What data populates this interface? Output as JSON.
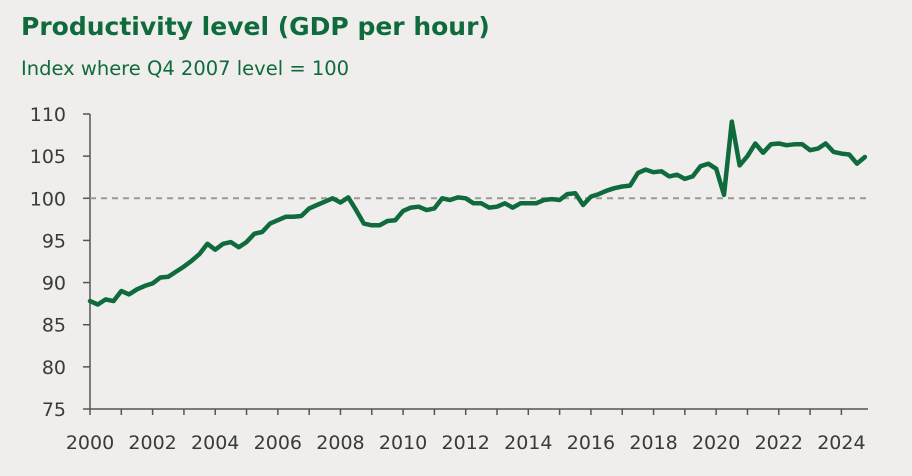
{
  "chart_data": {
    "type": "line",
    "title": "Productivity level (GDP per hour)",
    "subtitle": "Index where Q4 2007 level = 100",
    "xlabel": "",
    "ylabel": "",
    "xlim": [
      2000,
      2024.85
    ],
    "ylim": [
      75,
      110
    ],
    "x_ticks": [
      2000,
      2002,
      2004,
      2006,
      2008,
      2010,
      2012,
      2014,
      2016,
      2018,
      2020,
      2022,
      2024
    ],
    "x_tick_labels": [
      "2000",
      "2002",
      "2004",
      "2006",
      "2008",
      "2010",
      "2012",
      "2014",
      "2016",
      "2018",
      "2020",
      "2022",
      "2024"
    ],
    "y_ticks": [
      75,
      80,
      85,
      90,
      95,
      100,
      105,
      110
    ],
    "y_tick_labels": [
      "75",
      "80",
      "85",
      "90",
      "95",
      "100",
      "105",
      "110"
    ],
    "reference_line": 100,
    "grid": false,
    "colors": {
      "line": "#0f6a3c",
      "reference_line": "#9a9a9a",
      "axis": "#555555",
      "title": "#0f6a3c",
      "background": "#efeeec"
    },
    "series": [
      {
        "x": [
          2000.0,
          2000.25,
          2000.5,
          2000.75,
          2001.0,
          2001.25,
          2001.5,
          2001.75,
          2002.0,
          2002.25,
          2002.5,
          2002.75,
          2003.0,
          2003.25,
          2003.5,
          2003.75,
          2004.0,
          2004.25,
          2004.5,
          2004.75,
          2005.0,
          2005.25,
          2005.5,
          2005.75,
          2006.0,
          2006.25,
          2006.5,
          2006.75,
          2007.0,
          2007.25,
          2007.5,
          2007.75,
          2008.0,
          2008.25,
          2008.5,
          2008.75,
          2009.0,
          2009.25,
          2009.5,
          2009.75,
          2010.0,
          2010.25,
          2010.5,
          2010.75,
          2011.0,
          2011.25,
          2011.5,
          2011.75,
          2012.0,
          2012.25,
          2012.5,
          2012.75,
          2013.0,
          2013.25,
          2013.5,
          2013.75,
          2014.0,
          2014.25,
          2014.5,
          2014.75,
          2015.0,
          2015.25,
          2015.5,
          2015.75,
          2016.0,
          2016.25,
          2016.5,
          2016.75,
          2017.0,
          2017.25,
          2017.5,
          2017.75,
          2018.0,
          2018.25,
          2018.5,
          2018.75,
          2019.0,
          2019.25,
          2019.5,
          2019.75,
          2020.0,
          2020.25,
          2020.5,
          2020.75,
          2021.0,
          2021.25,
          2021.5,
          2021.75,
          2022.0,
          2022.25,
          2022.5,
          2022.75,
          2023.0,
          2023.25,
          2023.5,
          2023.75,
          2024.0,
          2024.25,
          2024.5,
          2024.75
        ],
        "values": [
          87.8,
          87.4,
          88.0,
          87.8,
          89.0,
          88.6,
          89.2,
          89.6,
          89.9,
          90.6,
          90.7,
          91.3,
          91.9,
          92.6,
          93.4,
          94.6,
          93.9,
          94.6,
          94.8,
          94.2,
          94.8,
          95.8,
          96.0,
          97.0,
          97.4,
          97.8,
          97.8,
          97.9,
          98.8,
          99.2,
          99.6,
          100.0,
          99.5,
          100.1,
          98.6,
          97.0,
          96.8,
          96.8,
          97.3,
          97.4,
          98.5,
          98.9,
          99.0,
          98.6,
          98.8,
          100.0,
          99.8,
          100.1,
          100.0,
          99.4,
          99.4,
          98.9,
          99.0,
          99.4,
          98.9,
          99.4,
          99.4,
          99.4,
          99.8,
          99.9,
          99.8,
          100.5,
          100.6,
          99.2,
          100.2,
          100.5,
          100.9,
          101.2,
          101.4,
          101.5,
          103.0,
          103.4,
          103.1,
          103.2,
          102.6,
          102.8,
          102.3,
          102.6,
          103.8,
          104.1,
          103.5,
          100.4,
          109.1,
          103.9,
          105.0,
          106.5,
          105.4,
          106.4,
          106.5,
          106.3,
          106.4,
          106.4,
          105.7,
          105.9,
          106.5,
          105.5,
          105.3,
          105.2,
          104.1,
          104.9
        ]
      }
    ]
  }
}
